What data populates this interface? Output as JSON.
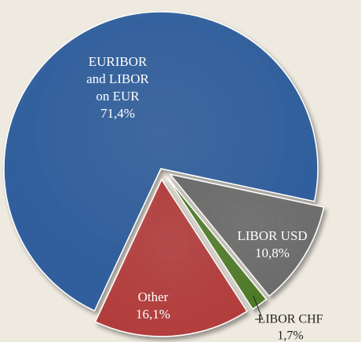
{
  "chart_data": {
    "type": "pie",
    "categories": [
      "EURIBOR and LIBOR on EUR",
      "LIBOR USD",
      "LIBOR CHF",
      "Other"
    ],
    "values": [
      71.4,
      10.8,
      1.7,
      16.1
    ],
    "value_labels": [
      "71,4%",
      "10,8%",
      "1,7%",
      "16,1%"
    ],
    "colors": [
      "#2d5c9c",
      "#6a6a6a",
      "#4e7a27",
      "#b23b3b"
    ]
  }
}
